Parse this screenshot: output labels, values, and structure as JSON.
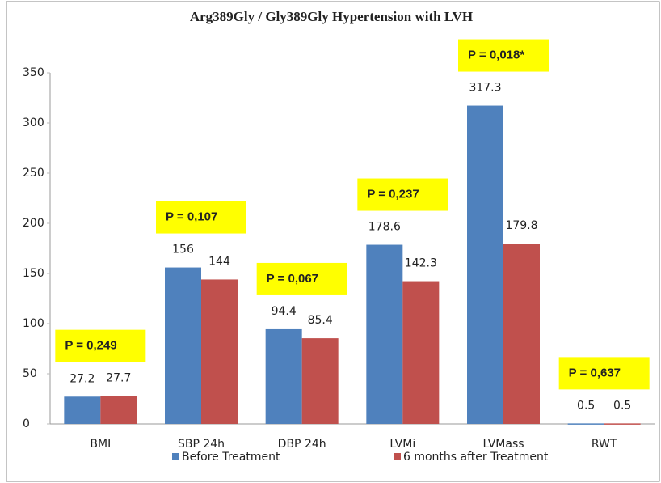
{
  "chart_data": {
    "type": "bar",
    "title": "Arg389Gly  / Gly389Gly  Hypertension with LVH",
    "categories": [
      "BMI",
      "SBP 24h",
      "DBP 24h",
      "LVMi",
      "LVMass",
      "RWT"
    ],
    "series": [
      {
        "name": "Before Treatment",
        "color": "#4f81bd",
        "values": [
          27.2,
          156,
          94.4,
          178.6,
          317.3,
          0.5
        ]
      },
      {
        "name": "6 months after Treatment",
        "color": "#c0504d",
        "values": [
          27.7,
          144,
          85.4,
          142.3,
          179.8,
          0.5
        ]
      }
    ],
    "annotations": [
      "P = 0,249",
      "P = 0,107",
      "P = 0,067",
      "P = 0,237",
      "P = 0,018*",
      "P = 0,637"
    ],
    "ylim": [
      0,
      350
    ],
    "yticks": [
      0,
      50,
      100,
      150,
      200,
      250,
      300,
      350
    ],
    "grid": false,
    "legend": "bottom"
  }
}
